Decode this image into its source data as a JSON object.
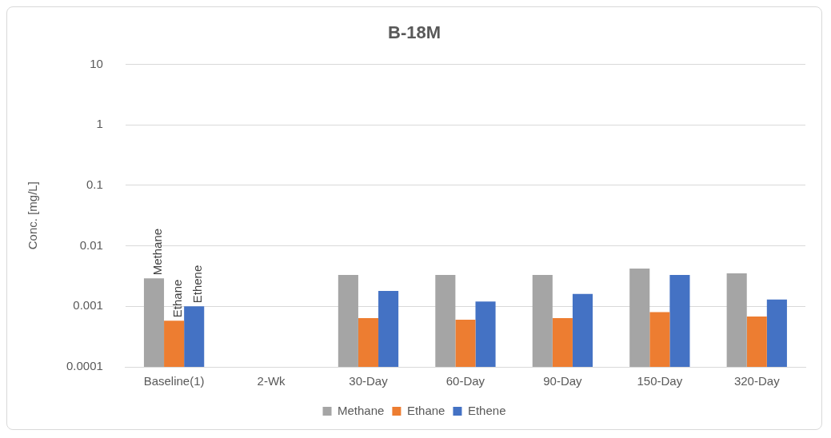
{
  "chart_data": {
    "type": "bar",
    "title": "B-18M",
    "ylabel": "Conc. [mg/L]",
    "categories": [
      "Baseline(1)",
      "2-Wk",
      "30-Day",
      "60-Day",
      "90-Day",
      "150-Day",
      "320-Day"
    ],
    "series": [
      {
        "name": "Methane",
        "color": "#a5a5a5",
        "values": [
          0.0029,
          null,
          0.0033,
          0.0033,
          0.0033,
          0.0042,
          0.0035
        ]
      },
      {
        "name": "Ethane",
        "color": "#ed7d31",
        "values": [
          0.00058,
          null,
          0.00064,
          0.0006,
          0.00064,
          0.0008,
          0.00068
        ]
      },
      {
        "name": "Ethene",
        "color": "#4472c4",
        "values": [
          0.001,
          null,
          0.0018,
          0.0012,
          0.0016,
          0.0033,
          0.0013
        ]
      }
    ],
    "log": "y",
    "ylim": [
      0.0001,
      10
    ],
    "yticks": [
      0.0001,
      0.001,
      0.01,
      0.1,
      1,
      10
    ],
    "grid": "y",
    "legend": "bottom",
    "annotations": [
      "Methane",
      "Ethane",
      "Ethene"
    ]
  }
}
